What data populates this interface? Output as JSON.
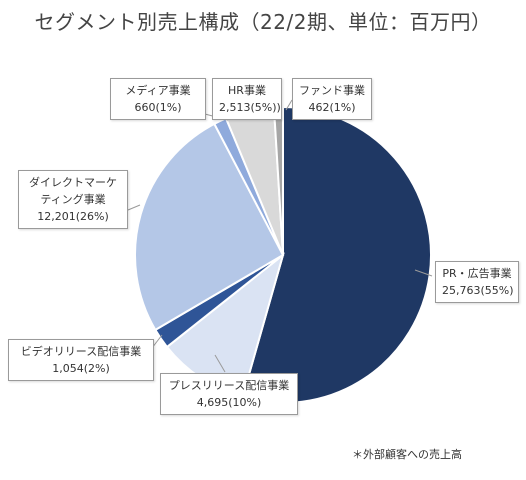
{
  "title": "セグメント別売上構成（22/2期、単位：百万円）",
  "footnote": "＊外部顧客への売上高",
  "chart_data": {
    "type": "pie",
    "slices": [
      {
        "name": "PR・広告事業",
        "value": 25763,
        "label": "25,763(55%)",
        "color": "#1f3864"
      },
      {
        "name": "プレスリリース配信事業",
        "value": 4695,
        "label": "4,695(10%)",
        "color": "#dae3f3"
      },
      {
        "name": "ビデオリリース配信事業",
        "value": 1054,
        "label": "1,054(2%)",
        "color": "#2f5597"
      },
      {
        "name": "ダイレクトマーケティング事業",
        "value": 12201,
        "label": "12,201(26%)",
        "color": "#b4c7e7"
      },
      {
        "name": "メディア事業",
        "value": 660,
        "label": "660(1%)",
        "color": "#8faadc"
      },
      {
        "name": "HR事業",
        "value": 2513,
        "label": "2,513(5%))",
        "color": "#d9d9d9"
      },
      {
        "name": "ファンド事業",
        "value": 462,
        "label": "462(1%)",
        "color": "#a6a6a6"
      }
    ]
  },
  "callouts": {
    "pr": {
      "line1": "PR・広告事業",
      "line2": "25,763(55%)"
    },
    "press": {
      "line1": "プレスリリース配信事業",
      "line2": "4,695(10%)"
    },
    "video": {
      "line1": "ビデオリリース配信事業",
      "line2": "1,054(2%)"
    },
    "direct": {
      "line1": "ダイレクトマーケ",
      "line2": "ティング事業",
      "line3": "12,201(26%)"
    },
    "media": {
      "line1": "メディア事業",
      "line2": "660(1%)"
    },
    "hr": {
      "line1": "HR事業",
      "line2": "2,513(5%))"
    },
    "fund": {
      "line1": "ファンド事業",
      "line2": "462(1%)"
    }
  }
}
